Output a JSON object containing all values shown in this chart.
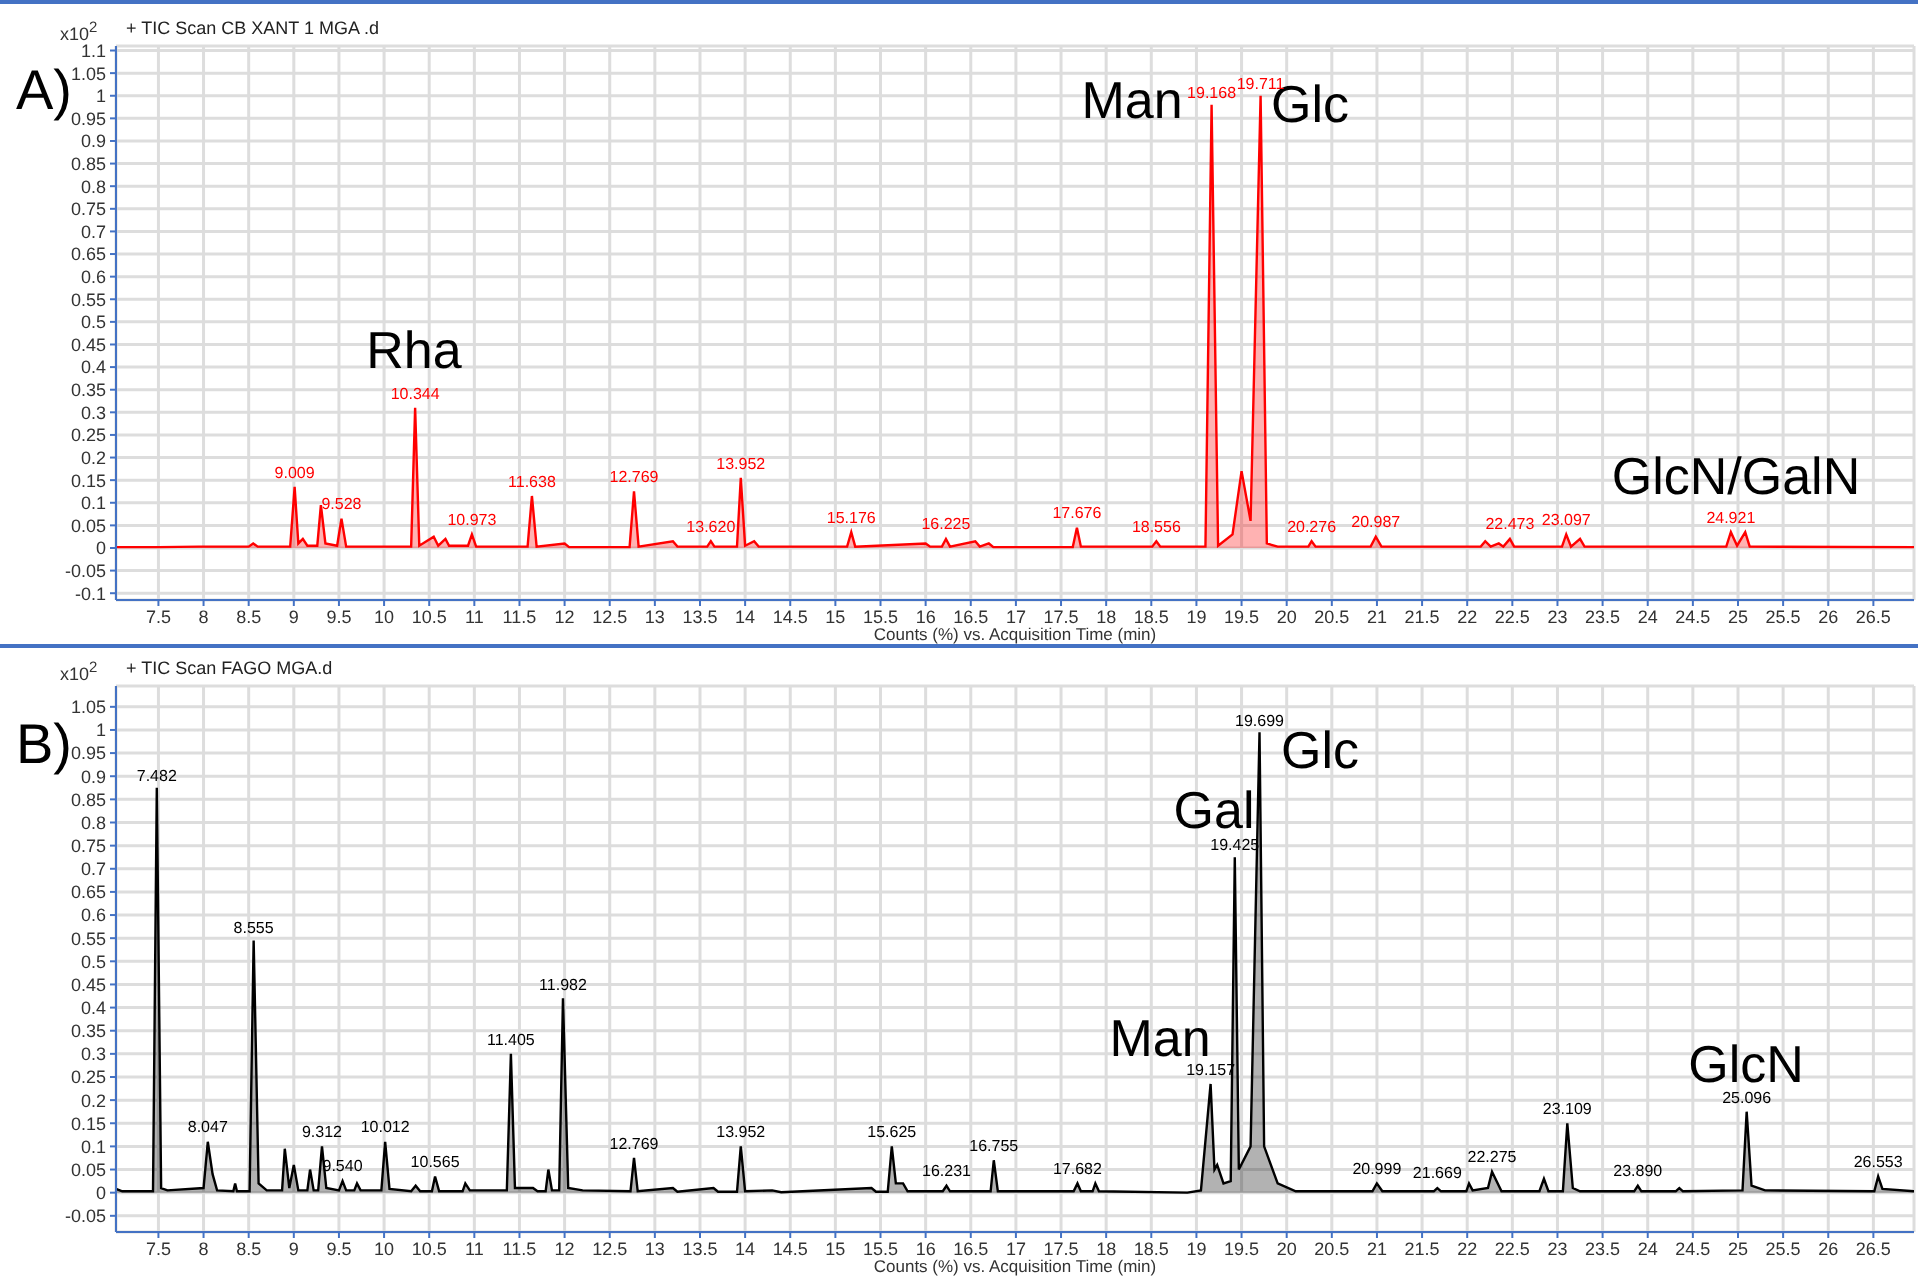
{
  "chart_data": [
    {
      "type": "area",
      "title": "+ TIC Scan CB XANT 1 MGA .d",
      "xlabel": "Counts (%) vs. Acquisition Time (min)",
      "ylabel": "x10$^{2}$",
      "annotations": [
        "A)",
        "Rha",
        "Man",
        "Glc",
        "GlcN/GalN",
        {
          "text": "9.009",
          "x": 9.009,
          "y": 0.135
        },
        {
          "text": "9.528",
          "x": 9.528,
          "y": 0.065
        },
        {
          "text": "10.344",
          "x": 10.344,
          "y": 0.31
        },
        {
          "text": "10.973",
          "x": 10.973,
          "y": 0.03
        },
        {
          "text": "11.638",
          "x": 11.638,
          "y": 0.115
        },
        {
          "text": "12.769",
          "x": 12.769,
          "y": 0.125
        },
        {
          "text": "13.620",
          "x": 13.62,
          "y": 0.015
        },
        {
          "text": "13.952",
          "x": 13.952,
          "y": 0.155
        },
        {
          "text": "15.176",
          "x": 15.176,
          "y": 0.035
        },
        {
          "text": "16.225",
          "x": 16.225,
          "y": 0.02
        },
        {
          "text": "17.676",
          "x": 17.676,
          "y": 0.045
        },
        {
          "text": "18.556",
          "x": 18.556,
          "y": 0.015
        },
        {
          "text": "19.168",
          "x": 19.168,
          "y": 0.98
        },
        {
          "text": "19.711",
          "x": 19.711,
          "y": 1.0
        },
        {
          "text": "20.276",
          "x": 20.276,
          "y": 0.015
        },
        {
          "text": "20.987",
          "x": 20.987,
          "y": 0.025
        },
        {
          "text": "22.473",
          "x": 22.473,
          "y": 0.02
        },
        {
          "text": "23.097",
          "x": 23.097,
          "y": 0.03
        },
        {
          "text": "24.921",
          "x": 24.921,
          "y": 0.035
        }
      ],
      "x": [
        7.03,
        7.5,
        7.95,
        8.5,
        8.55,
        8.6,
        8.96,
        9.009,
        9.05,
        9.1,
        9.15,
        9.26,
        9.3,
        9.35,
        9.48,
        9.528,
        9.58,
        10.3,
        10.344,
        10.39,
        10.55,
        10.6,
        10.68,
        10.72,
        10.93,
        10.973,
        11.02,
        11.59,
        11.638,
        11.69,
        12.0,
        12.05,
        12.72,
        12.769,
        12.82,
        13.2,
        13.25,
        13.58,
        13.62,
        13.66,
        13.91,
        13.952,
        14.0,
        14.1,
        14.15,
        15.13,
        15.176,
        15.22,
        16.0,
        16.05,
        16.18,
        16.225,
        16.27,
        16.55,
        16.6,
        16.7,
        16.75,
        17.63,
        17.676,
        17.72,
        18.51,
        18.556,
        18.6,
        19.1,
        19.168,
        19.24,
        19.4,
        19.5,
        19.6,
        19.711,
        19.78,
        19.9,
        20.24,
        20.276,
        20.32,
        20.93,
        20.987,
        21.05,
        22.15,
        22.2,
        22.26,
        22.35,
        22.4,
        22.473,
        22.52,
        23.05,
        23.097,
        23.15,
        23.25,
        23.3,
        24.87,
        24.921,
        24.99,
        25.08,
        25.13,
        26.95
      ],
      "series": [
        {
          "color": "#ff0000",
          "values": [
            0.002,
            0.002,
            0.003,
            0.003,
            0.01,
            0.003,
            0.003,
            0.135,
            0.01,
            0.02,
            0.005,
            0.005,
            0.095,
            0.01,
            0.005,
            0.065,
            0.003,
            0.003,
            0.31,
            0.005,
            0.025,
            0.005,
            0.02,
            0.005,
            0.005,
            0.03,
            0.003,
            0.003,
            0.115,
            0.003,
            0.01,
            0.002,
            0.002,
            0.125,
            0.003,
            0.015,
            0.003,
            0.003,
            0.015,
            0.003,
            0.003,
            0.155,
            0.005,
            0.015,
            0.003,
            0.003,
            0.035,
            0.003,
            0.01,
            0.003,
            0.003,
            0.02,
            0.003,
            0.015,
            0.003,
            0.01,
            0.002,
            0.002,
            0.045,
            0.003,
            0.003,
            0.015,
            0.003,
            0.003,
            0.98,
            0.005,
            0.03,
            0.17,
            0.06,
            1.0,
            0.01,
            0.003,
            0.003,
            0.015,
            0.003,
            0.003,
            0.025,
            0.003,
            0.003,
            0.015,
            0.003,
            0.01,
            0.003,
            0.02,
            0.003,
            0.003,
            0.03,
            0.003,
            0.02,
            0.003,
            0.003,
            0.035,
            0.005,
            0.035,
            0.003,
            0.002
          ]
        }
      ],
      "xlim": [
        7.03,
        26.95
      ],
      "xticks": [
        7.5,
        8,
        8.5,
        9,
        9.5,
        10,
        10.5,
        11,
        11.5,
        12,
        12.5,
        13,
        13.5,
        14,
        14.5,
        15,
        15.5,
        16,
        16.5,
        17,
        17.5,
        18,
        18.5,
        19,
        19.5,
        20,
        20.5,
        21,
        21.5,
        22,
        22.5,
        23,
        23.5,
        24,
        24.5,
        25,
        25.5,
        26,
        26.5
      ],
      "ylim": [
        -0.115,
        1.11
      ],
      "yticks": [
        -0.1,
        -0.05,
        0,
        0.05,
        0.1,
        0.15,
        0.2,
        0.25,
        0.3,
        0.35,
        0.4,
        0.45,
        0.5,
        0.55,
        0.6,
        0.65,
        0.7,
        0.75,
        0.8,
        0.85,
        0.9,
        0.95,
        1,
        1.05,
        1.1
      ],
      "grid": true
    },
    {
      "type": "area",
      "title": "+ TIC Scan FAGO MGA.d",
      "xlabel": "Counts (%) vs. Acquisition Time (min)",
      "ylabel": "x10$^{2}$",
      "annotations": [
        "B)",
        "Gal",
        "Glc",
        "Man",
        "GlcN",
        {
          "text": "7.482",
          "x": 7.482,
          "y": 0.875
        },
        {
          "text": "8.047",
          "x": 8.047,
          "y": 0.11
        },
        {
          "text": "8.555",
          "x": 8.555,
          "y": 0.545
        },
        {
          "text": "9.312",
          "x": 9.312,
          "y": 0.1
        },
        {
          "text": "9.540",
          "x": 9.54,
          "y": 0.025
        },
        {
          "text": "10.012",
          "x": 10.012,
          "y": 0.11
        },
        {
          "text": "10.565",
          "x": 10.565,
          "y": 0.035
        },
        {
          "text": "11.405",
          "x": 11.405,
          "y": 0.3
        },
        {
          "text": "11.982",
          "x": 11.982,
          "y": 0.42
        },
        {
          "text": "12.769",
          "x": 12.769,
          "y": 0.075
        },
        {
          "text": "13.952",
          "x": 13.952,
          "y": 0.1
        },
        {
          "text": "15.625",
          "x": 15.625,
          "y": 0.1
        },
        {
          "text": "16.231",
          "x": 16.231,
          "y": 0.015
        },
        {
          "text": "16.755",
          "x": 16.755,
          "y": 0.07
        },
        {
          "text": "17.682",
          "x": 17.682,
          "y": 0.02
        },
        {
          "text": "19.157",
          "x": 19.157,
          "y": 0.235
        },
        {
          "text": "19.425",
          "x": 19.425,
          "y": 0.725
        },
        {
          "text": "19.699",
          "x": 19.699,
          "y": 0.995
        },
        {
          "text": "20.999",
          "x": 20.999,
          "y": 0.02
        },
        {
          "text": "21.669",
          "x": 21.669,
          "y": 0.01
        },
        {
          "text": "22.275",
          "x": 22.275,
          "y": 0.045
        },
        {
          "text": "23.109",
          "x": 23.109,
          "y": 0.15
        },
        {
          "text": "23.890",
          "x": 23.89,
          "y": 0.015
        },
        {
          "text": "25.096",
          "x": 25.096,
          "y": 0.175
        },
        {
          "text": "26.553",
          "x": 26.553,
          "y": 0.035
        }
      ],
      "x": [
        7.03,
        7.1,
        7.44,
        7.482,
        7.53,
        7.6,
        8.0,
        8.047,
        8.1,
        8.15,
        8.33,
        8.35,
        8.37,
        8.51,
        8.555,
        8.61,
        8.7,
        8.87,
        8.9,
        8.95,
        9.0,
        9.05,
        9.15,
        9.18,
        9.22,
        9.27,
        9.312,
        9.36,
        9.5,
        9.54,
        9.58,
        9.67,
        9.7,
        9.74,
        9.97,
        10.012,
        10.06,
        10.3,
        10.35,
        10.4,
        10.53,
        10.565,
        10.61,
        10.87,
        10.9,
        10.95,
        11.36,
        11.405,
        11.45,
        11.65,
        11.7,
        11.79,
        11.82,
        11.86,
        11.94,
        11.982,
        12.04,
        12.2,
        12.73,
        12.769,
        12.81,
        13.2,
        13.25,
        13.65,
        13.7,
        13.91,
        13.952,
        14.0,
        14.3,
        14.4,
        15.4,
        15.45,
        15.58,
        15.625,
        15.67,
        15.75,
        15.8,
        16.19,
        16.231,
        16.27,
        16.72,
        16.755,
        16.8,
        17.64,
        17.682,
        17.72,
        17.85,
        17.88,
        17.92,
        18.9,
        19.05,
        19.157,
        19.2,
        19.23,
        19.3,
        19.38,
        19.425,
        19.47,
        19.6,
        19.699,
        19.75,
        19.9,
        20.1,
        20.95,
        20.999,
        21.06,
        21.63,
        21.669,
        21.71,
        21.99,
        22.02,
        22.06,
        22.23,
        22.275,
        22.38,
        22.8,
        22.85,
        22.9,
        23.06,
        23.109,
        23.17,
        23.25,
        23.85,
        23.89,
        23.93,
        24.31,
        24.35,
        24.39,
        25.05,
        25.096,
        25.15,
        25.3,
        26.51,
        26.553,
        26.6,
        26.95
      ],
      "series": [
        {
          "color": "#000000",
          "values": [
            0.008,
            0.003,
            0.003,
            0.875,
            0.01,
            0.005,
            0.01,
            0.11,
            0.04,
            0.005,
            0.003,
            0.02,
            0.003,
            0.003,
            0.545,
            0.02,
            0.005,
            0.005,
            0.095,
            0.01,
            0.06,
            0.005,
            0.005,
            0.05,
            0.005,
            0.005,
            0.1,
            0.01,
            0.005,
            0.025,
            0.005,
            0.005,
            0.02,
            0.005,
            0.005,
            0.11,
            0.008,
            0.003,
            0.015,
            0.003,
            0.003,
            0.035,
            0.003,
            0.003,
            0.02,
            0.005,
            0.005,
            0.3,
            0.01,
            0.01,
            0.003,
            0.003,
            0.05,
            0.005,
            0.005,
            0.42,
            0.01,
            0.005,
            0.003,
            0.075,
            0.003,
            0.01,
            0.002,
            0.01,
            0.002,
            0.002,
            0.1,
            0.003,
            0.005,
            0.001,
            0.01,
            0.002,
            0.002,
            0.1,
            0.02,
            0.02,
            0.003,
            0.003,
            0.015,
            0.003,
            0.003,
            0.07,
            0.003,
            0.003,
            0.02,
            0.003,
            0.003,
            0.02,
            0.003,
            0.0,
            0.005,
            0.235,
            0.05,
            0.06,
            0.02,
            0.025,
            0.725,
            0.05,
            0.1,
            0.995,
            0.1,
            0.02,
            0.003,
            0.003,
            0.02,
            0.003,
            0.003,
            0.01,
            0.003,
            0.003,
            0.02,
            0.005,
            0.01,
            0.045,
            0.003,
            0.003,
            0.03,
            0.003,
            0.003,
            0.15,
            0.01,
            0.003,
            0.003,
            0.015,
            0.003,
            0.003,
            0.01,
            0.003,
            0.005,
            0.175,
            0.015,
            0.005,
            0.003,
            0.035,
            0.008,
            0.003
          ]
        }
      ],
      "xlim": [
        7.03,
        26.95
      ],
      "xticks": [
        7.5,
        8,
        8.5,
        9,
        9.5,
        10,
        10.5,
        11,
        11.5,
        12,
        12.5,
        13,
        13.5,
        14,
        14.5,
        15,
        15.5,
        16,
        16.5,
        17,
        17.5,
        18,
        18.5,
        19,
        19.5,
        20,
        20.5,
        21,
        21.5,
        22,
        22.5,
        23,
        23.5,
        24,
        24.5,
        25,
        25.5,
        26,
        26.5
      ],
      "ylim": [
        -0.085,
        1.095
      ],
      "yticks": [
        -0.05,
        0,
        0.05,
        0.1,
        0.15,
        0.2,
        0.25,
        0.3,
        0.35,
        0.4,
        0.45,
        0.5,
        0.55,
        0.6,
        0.65,
        0.7,
        0.75,
        0.8,
        0.85,
        0.9,
        0.95,
        1,
        1.05
      ],
      "grid": true
    }
  ]
}
